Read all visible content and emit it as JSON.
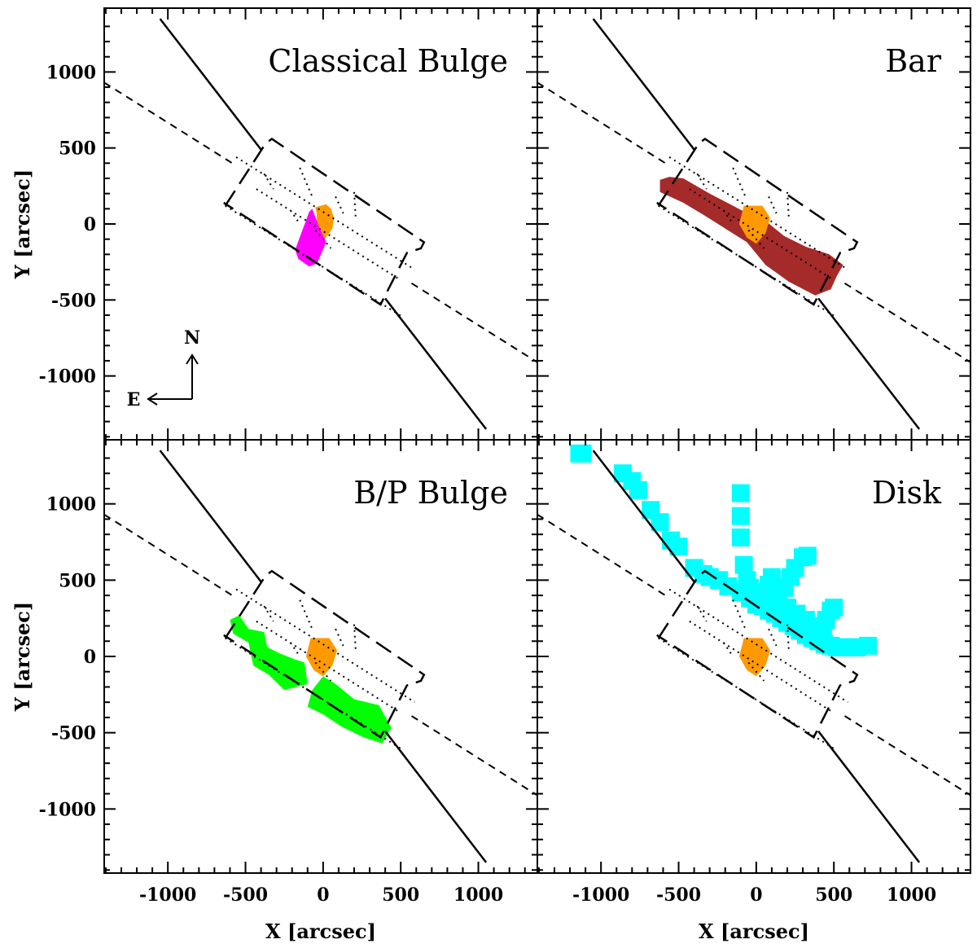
{
  "chart_data": {
    "type": "scatter",
    "layout": "2x2 panels sharing axes",
    "xlabel": "X [arcsec]",
    "ylabel": "Y [arcsec]",
    "xlim": [
      -1410,
      1380
    ],
    "ylim": [
      -1420,
      1420
    ],
    "xticks": [
      -1000,
      -500,
      0,
      500,
      1000
    ],
    "yticks": [
      1000,
      500,
      0,
      -500,
      -1000
    ],
    "tick_labels_x": [
      "-1000",
      "-500",
      "0",
      "500",
      "1000"
    ],
    "tick_labels_y": [
      "1000",
      "500",
      "0",
      "-500",
      "-1000"
    ],
    "compass": {
      "north": "N",
      "east": "E"
    },
    "colors": {
      "orange": "#ff9900",
      "magenta": "#ff00ff",
      "brown": "#a52a2a",
      "green": "#00ff00",
      "cyan": "#00ffff"
    },
    "overlay_lines": {
      "solid_major_axis": [
        [
          [
            -1050,
            1350
          ],
          [
            -400,
            490
          ]
        ],
        [
          [
            400,
            -490
          ],
          [
            1050,
            -1350
          ]
        ]
      ],
      "dashed_minor_axis": [
        [
          [
            -1410,
            930
          ],
          [
            -570,
            390
          ]
        ],
        [
          [
            570,
            -390
          ],
          [
            1380,
            -910
          ]
        ]
      ],
      "long_dash_footprint": [
        [
          -630,
          120
        ],
        [
          -370,
          530
        ],
        [
          -330,
          560
        ],
        [
          650,
          -120
        ],
        [
          630,
          -160
        ],
        [
          540,
          -190
        ],
        [
          370,
          -530
        ],
        [
          -640,
          140
        ]
      ],
      "dotted_grid": [
        [
          [
            -560,
            440
          ],
          [
            590,
            -300
          ]
        ],
        [
          [
            -630,
            120
          ],
          [
            510,
            -610
          ]
        ],
        [
          [
            -430,
            230
          ],
          [
            500,
            -370
          ]
        ],
        [
          [
            -380,
            330
          ],
          [
            -320,
            230
          ]
        ],
        [
          [
            -150,
            370
          ],
          [
            -70,
            180
          ]
        ],
        [
          [
            -210,
            90
          ],
          [
            -150,
            0
          ]
        ],
        [
          [
            80,
            180
          ],
          [
            130,
            70
          ]
        ],
        [
          [
            200,
            210
          ],
          [
            210,
            40
          ]
        ],
        [
          [
            -50,
            -40
          ],
          [
            50,
            -160
          ]
        ]
      ]
    },
    "panels": [
      {
        "title": "Classical Bulge",
        "regions": [
          {
            "color": "orange",
            "polygon": [
              [
                -50,
                110
              ],
              [
                20,
                130
              ],
              [
                50,
                100
              ],
              [
                70,
                40
              ],
              [
                60,
                -30
              ],
              [
                10,
                -100
              ],
              [
                -50,
                -40
              ],
              [
                -40,
                60
              ]
            ]
          },
          {
            "color": "magenta",
            "polygon": [
              [
                -70,
                100
              ],
              [
                -30,
                -10
              ],
              [
                20,
                -120
              ],
              [
                -40,
                -260
              ],
              [
                -90,
                -280
              ],
              [
                -160,
                -230
              ],
              [
                -180,
                -170
              ],
              [
                -90,
                80
              ]
            ]
          }
        ]
      },
      {
        "title": "Bar",
        "regions": [
          {
            "color": "brown",
            "polygon": [
              [
                -620,
                290
              ],
              [
                -560,
                310
              ],
              [
                -470,
                300
              ],
              [
                -300,
                200
              ],
              [
                -150,
                120
              ],
              [
                -40,
                60
              ],
              [
                60,
                20
              ],
              [
                180,
                -80
              ],
              [
                320,
                -150
              ],
              [
                470,
                -200
              ],
              [
                560,
                -270
              ],
              [
                520,
                -340
              ],
              [
                480,
                -430
              ],
              [
                380,
                -470
              ],
              [
                210,
                -380
              ],
              [
                60,
                -270
              ],
              [
                -60,
                -120
              ],
              [
                -200,
                -30
              ],
              [
                -340,
                60
              ],
              [
                -470,
                140
              ],
              [
                -620,
                210
              ]
            ]
          },
          {
            "color": "orange",
            "polygon": [
              [
                -80,
                120
              ],
              [
                40,
                120
              ],
              [
                90,
                40
              ],
              [
                60,
                -60
              ],
              [
                0,
                -130
              ],
              [
                -60,
                -90
              ],
              [
                -110,
                0
              ]
            ]
          }
        ]
      },
      {
        "title": "B/P Bulge",
        "regions": [
          {
            "color": "green",
            "polygon": [
              [
                -600,
                240
              ],
              [
                -540,
                270
              ],
              [
                -480,
                180
              ],
              [
                -380,
                160
              ],
              [
                -360,
                60
              ],
              [
                -280,
                20
              ],
              [
                -180,
                -20
              ],
              [
                -120,
                -40
              ],
              [
                -100,
                -180
              ],
              [
                -250,
                -220
              ],
              [
                -350,
                -120
              ],
              [
                -450,
                -60
              ],
              [
                -480,
                90
              ],
              [
                -580,
                150
              ]
            ]
          },
          {
            "color": "green",
            "polygon": [
              [
                0,
                -130
              ],
              [
                80,
                -180
              ],
              [
                200,
                -280
              ],
              [
                360,
                -320
              ],
              [
                440,
                -470
              ],
              [
                380,
                -570
              ],
              [
                260,
                -530
              ],
              [
                120,
                -460
              ],
              [
                0,
                -380
              ],
              [
                -100,
                -330
              ],
              [
                -70,
                -220
              ]
            ]
          },
          {
            "color": "orange",
            "polygon": [
              [
                -80,
                120
              ],
              [
                40,
                120
              ],
              [
                90,
                40
              ],
              [
                60,
                -60
              ],
              [
                0,
                -130
              ],
              [
                -60,
                -90
              ],
              [
                -110,
                0
              ]
            ]
          }
        ]
      },
      {
        "title": "Disk",
        "regions": [
          {
            "color": "orange",
            "polygon": [
              [
                -80,
                120
              ],
              [
                40,
                120
              ],
              [
                90,
                40
              ],
              [
                60,
                -60
              ],
              [
                0,
                -130
              ],
              [
                -60,
                -90
              ],
              [
                -110,
                0
              ]
            ]
          }
        ],
        "points": [
          [
            -1140,
            1330
          ],
          [
            -1120,
            1330
          ],
          [
            -860,
            1200
          ],
          [
            -800,
            1150
          ],
          [
            -760,
            1090
          ],
          [
            -680,
            960
          ],
          [
            -620,
            880
          ],
          [
            -550,
            760
          ],
          [
            -500,
            720
          ],
          [
            -400,
            580
          ],
          [
            -340,
            540
          ],
          [
            -300,
            520
          ],
          [
            -240,
            500
          ],
          [
            -180,
            460
          ],
          [
            -100,
            420
          ],
          [
            -40,
            380
          ],
          [
            0,
            340
          ],
          [
            40,
            330
          ],
          [
            80,
            300
          ],
          [
            120,
            280
          ],
          [
            160,
            250
          ],
          [
            200,
            220
          ],
          [
            240,
            200
          ],
          [
            280,
            170
          ],
          [
            320,
            140
          ],
          [
            360,
            120
          ],
          [
            400,
            100
          ],
          [
            440,
            80
          ],
          [
            480,
            70
          ],
          [
            520,
            60
          ],
          [
            560,
            60
          ],
          [
            600,
            60
          ],
          [
            650,
            60
          ],
          [
            720,
            70
          ],
          [
            -100,
            1070
          ],
          [
            -100,
            920
          ],
          [
            -100,
            780
          ],
          [
            -80,
            600
          ],
          [
            -60,
            500
          ],
          [
            -40,
            450
          ],
          [
            60,
            420
          ],
          [
            80,
            470
          ],
          [
            100,
            520
          ],
          [
            140,
            400
          ],
          [
            180,
            450
          ],
          [
            220,
            520
          ],
          [
            250,
            580
          ],
          [
            300,
            650
          ],
          [
            330,
            660
          ],
          [
            200,
            320
          ],
          [
            260,
            280
          ],
          [
            320,
            240
          ],
          [
            380,
            200
          ],
          [
            430,
            180
          ],
          [
            450,
            240
          ],
          [
            480,
            300
          ],
          [
            500,
            320
          ]
        ]
      }
    ]
  }
}
